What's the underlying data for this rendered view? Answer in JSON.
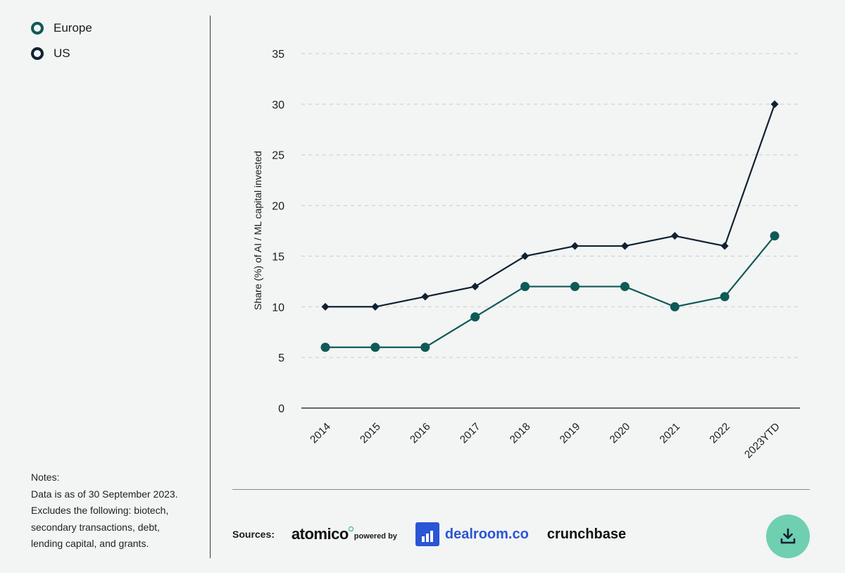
{
  "legend": [
    {
      "label": "Europe",
      "color": "#0e5a57"
    },
    {
      "label": "US",
      "color": "#0f2232"
    }
  ],
  "notes": {
    "heading": "Notes:",
    "lines": [
      "Data is as of 30 September 2023.",
      "Excludes the following: biotech,",
      "secondary transactions, debt,",
      "lending capital, and grants."
    ]
  },
  "sources": {
    "label": "Sources:",
    "atomico": "atomico",
    "powered_by": "powered by",
    "dealroom": "dealroom.co",
    "crunchbase": "crunchbase"
  },
  "download": {
    "icon": "download-icon",
    "color": "#6fcfb1"
  },
  "chart_data": {
    "type": "line",
    "title": "",
    "xlabel": "",
    "ylabel": "Share (%) of AI / ML capital invested",
    "categories": [
      "2014",
      "2015",
      "2016",
      "2017",
      "2018",
      "2019",
      "2020",
      "2021",
      "2022",
      "2023YTD"
    ],
    "ylim": [
      0,
      35
    ],
    "yticks": [
      0,
      5,
      10,
      15,
      20,
      25,
      30,
      35
    ],
    "grid": true,
    "series": [
      {
        "name": "US",
        "color": "#0f2232",
        "marker": "diamond",
        "values": [
          10,
          10,
          11,
          12,
          15,
          16,
          16,
          17,
          16,
          30
        ]
      },
      {
        "name": "Europe",
        "color": "#0e5a57",
        "marker": "circle",
        "values": [
          6,
          6,
          6,
          9,
          12,
          12,
          12,
          10,
          11,
          17
        ]
      }
    ]
  }
}
